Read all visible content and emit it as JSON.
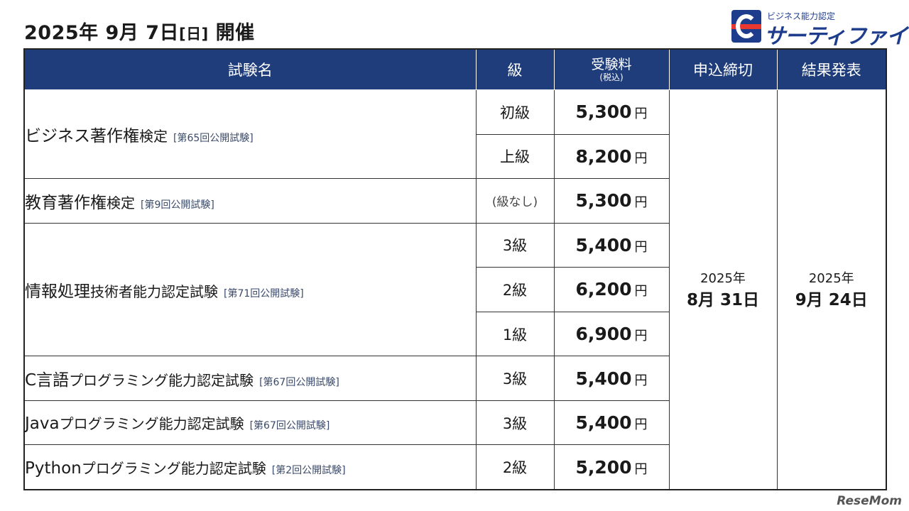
{
  "header": {
    "title_main": "2025年 9月 7日",
    "title_day": "[日]",
    "title_suffix": "開催"
  },
  "logo": {
    "caption": "ビジネス能力認定",
    "brand": "サーティファイ",
    "colors": {
      "primary": "#1d3c8c",
      "accent": "#e8382f"
    }
  },
  "table": {
    "header_bg": "#1f3d7a",
    "columns": {
      "name": "試験名",
      "grade": "級",
      "fee_main": "受験料",
      "fee_sub": "(税込)",
      "deadline": "申込締切",
      "result": "結果発表"
    },
    "exams": [
      {
        "name_main": "ビジネス著作権",
        "name_rest": "検定",
        "session": "[第65回公開試験]",
        "levels": [
          {
            "grade": "初級",
            "fee": "5,300",
            "yen": "円"
          },
          {
            "grade": "上級",
            "fee": "8,200",
            "yen": "円"
          }
        ]
      },
      {
        "name_main": "教育著作権",
        "name_rest": "検定",
        "session": "[第9回公開試験]",
        "levels": [
          {
            "grade": "(級なし)",
            "fee": "5,300",
            "yen": "円"
          }
        ]
      },
      {
        "name_main": "情報処理",
        "name_rest": "技術者能力認定試験",
        "session": "[第71回公開試験]",
        "levels": [
          {
            "grade": "3級",
            "fee": "5,400",
            "yen": "円"
          },
          {
            "grade": "2級",
            "fee": "6,200",
            "yen": "円"
          },
          {
            "grade": "1級",
            "fee": "6,900",
            "yen": "円"
          }
        ]
      },
      {
        "name_main": "C言語",
        "name_rest": "プログラミング能力認定試験",
        "session": "[第67回公開試験]",
        "levels": [
          {
            "grade": "3級",
            "fee": "5,400",
            "yen": "円"
          }
        ]
      },
      {
        "name_main": "Java",
        "name_rest": "プログラミング能力認定試験",
        "session": "[第67回公開試験]",
        "levels": [
          {
            "grade": "3級",
            "fee": "5,400",
            "yen": "円"
          }
        ]
      },
      {
        "name_main": "Python",
        "name_rest": "プログラミング能力認定試験",
        "session": "[第2回公開試験]",
        "levels": [
          {
            "grade": "2級",
            "fee": "5,200",
            "yen": "円"
          }
        ]
      }
    ],
    "deadline": {
      "year": "2025年",
      "date": "8月 31日"
    },
    "result": {
      "year": "2025年",
      "date": "9月 24日"
    }
  },
  "watermark": "ReseMom"
}
